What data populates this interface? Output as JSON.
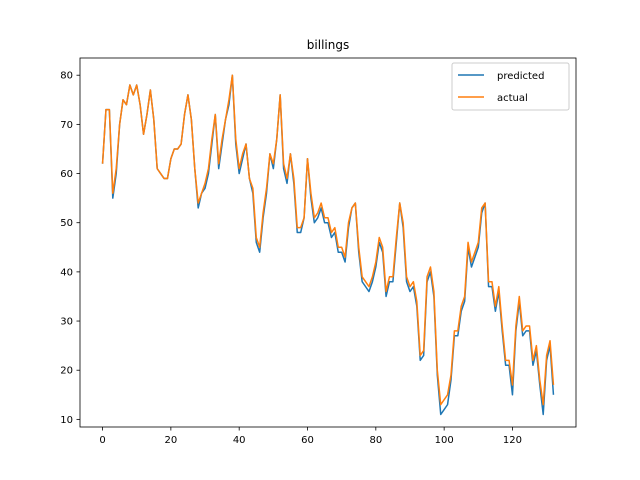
{
  "chart_data": {
    "type": "line",
    "title": "billings",
    "xlabel": "",
    "ylabel": "",
    "xlim": [
      -6.6,
      138.6
    ],
    "ylim": [
      8.45,
      83.5
    ],
    "xticks": [
      0,
      20,
      40,
      60,
      80,
      100,
      120
    ],
    "yticks": [
      10,
      20,
      30,
      40,
      50,
      60,
      70,
      80
    ],
    "grid": false,
    "legend_position": "top-right",
    "x": [
      0,
      1,
      2,
      3,
      4,
      5,
      6,
      7,
      8,
      9,
      10,
      11,
      12,
      13,
      14,
      15,
      16,
      17,
      18,
      19,
      20,
      21,
      22,
      23,
      24,
      25,
      26,
      27,
      28,
      29,
      30,
      31,
      32,
      33,
      34,
      35,
      36,
      37,
      38,
      39,
      40,
      41,
      42,
      43,
      44,
      45,
      46,
      47,
      48,
      49,
      50,
      51,
      52,
      53,
      54,
      55,
      56,
      57,
      58,
      59,
      60,
      61,
      62,
      63,
      64,
      65,
      66,
      67,
      68,
      69,
      70,
      71,
      72,
      73,
      74,
      75,
      76,
      77,
      78,
      79,
      80,
      81,
      82,
      83,
      84,
      85,
      86,
      87,
      88,
      89,
      90,
      91,
      92,
      93,
      94,
      95,
      96,
      97,
      98,
      99,
      100,
      101,
      102,
      103,
      104,
      105,
      106,
      107,
      108,
      109,
      110,
      111,
      112,
      113,
      114,
      115,
      116,
      117,
      118,
      119,
      120,
      121,
      122,
      123,
      124,
      125,
      126,
      127,
      128,
      129,
      130,
      131,
      132
    ],
    "series": [
      {
        "name": "predicted",
        "color": "#1f77b4",
        "values": [
          62,
          73,
          73,
          55,
          60,
          70,
          75,
          74,
          78,
          76,
          78,
          74,
          68,
          72,
          77,
          71,
          61,
          60,
          59,
          59,
          63,
          65,
          65,
          66,
          72,
          76,
          71,
          61,
          53,
          56,
          57,
          60,
          66,
          72,
          61,
          66,
          71,
          74,
          80,
          66,
          60,
          63,
          66,
          59,
          56,
          46,
          44,
          51,
          56,
          64,
          61,
          67,
          76,
          61,
          58,
          64,
          58,
          48,
          48,
          51,
          63,
          55,
          50,
          51,
          53,
          50,
          50,
          47,
          48,
          44,
          44,
          42,
          49,
          53,
          54,
          44,
          38,
          37,
          36,
          38,
          41,
          46,
          44,
          35,
          38,
          38,
          46,
          54,
          49,
          38,
          36,
          37,
          33,
          22,
          23,
          38,
          40,
          35,
          19,
          11,
          12,
          13,
          18,
          27,
          27,
          32,
          34,
          45,
          41,
          43,
          45,
          52,
          54,
          37,
          37,
          32,
          36,
          28,
          21,
          21,
          15,
          28,
          34,
          27,
          28,
          28,
          21,
          24,
          17,
          11,
          22,
          25,
          15
        ]
      },
      {
        "name": "actual",
        "color": "#ff7f0e",
        "values": [
          62,
          73,
          73,
          56,
          61,
          70,
          75,
          74,
          78,
          76,
          78,
          74,
          68,
          72,
          77,
          71,
          61,
          60,
          59,
          59,
          63,
          65,
          65,
          66,
          72,
          76,
          71,
          61,
          54,
          56,
          58,
          61,
          67,
          72,
          62,
          67,
          71,
          75,
          80,
          67,
          61,
          64,
          66,
          59,
          57,
          47,
          45,
          52,
          57,
          64,
          62,
          67,
          76,
          62,
          59,
          64,
          59,
          49,
          49,
          51,
          63,
          56,
          51,
          52,
          54,
          51,
          51,
          48,
          49,
          45,
          45,
          43,
          50,
          53,
          54,
          45,
          39,
          38,
          37,
          39,
          42,
          47,
          45,
          36,
          39,
          39,
          47,
          54,
          50,
          39,
          37,
          38,
          34,
          23,
          24,
          39,
          41,
          36,
          20,
          13,
          14,
          15,
          19,
          28,
          28,
          33,
          35,
          46,
          42,
          44,
          46,
          53,
          54,
          38,
          38,
          33,
          37,
          29,
          22,
          22,
          17,
          29,
          35,
          28,
          29,
          29,
          22,
          25,
          18,
          13,
          23,
          26,
          17
        ]
      }
    ]
  }
}
